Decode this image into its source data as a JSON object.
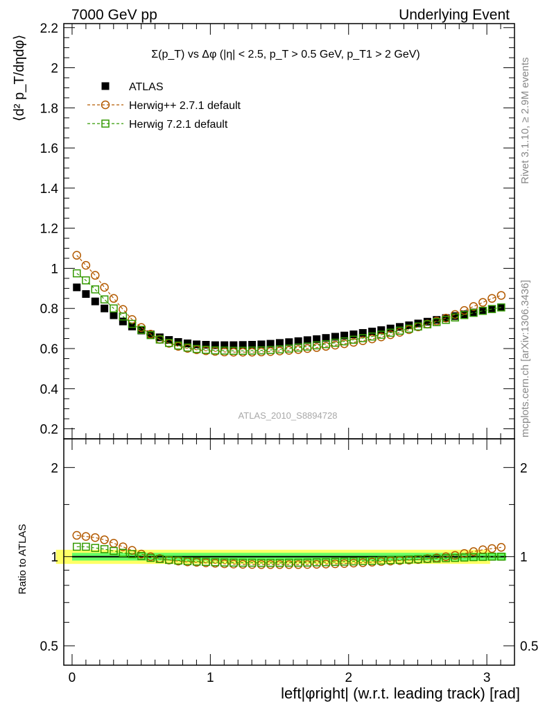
{
  "header": {
    "left": "7000 GeV pp",
    "right": "Underlying Event"
  },
  "side_labels": {
    "rivet": "Rivet 3.1.10, ≥ 2.9M events",
    "mcplots": "mcplots.cern.ch [arXiv:1306.3436]"
  },
  "plot_title": "Σ(p_T) vs Δφ (|η| < 2.5, p_T > 0.5 GeV, p_T1 > 2 GeV)",
  "analysis_label": "ATLAS_2010_S8894728",
  "colors": {
    "data": "#000000",
    "herwigpp": "#b35a00",
    "herwig7": "#339900",
    "band_inner": "#66ff66",
    "band_outer": "#ffff66"
  },
  "chart_data": [
    {
      "type": "scatter",
      "panel": "main",
      "ylabel": "⟨d² p_T/dηdφ⟩",
      "ylim": [
        0.15,
        2.22
      ],
      "xlim": [
        -0.06,
        3.2
      ],
      "y_ticks": [
        "0.2",
        "0.4",
        "0.6",
        "0.8",
        "1",
        "1.2",
        "1.4",
        "1.6",
        "1.8",
        "2",
        "2.2"
      ],
      "legend_position": "top-left",
      "x": [
        0.034,
        0.1,
        0.167,
        0.234,
        0.301,
        0.368,
        0.434,
        0.501,
        0.568,
        0.634,
        0.701,
        0.768,
        0.835,
        0.901,
        0.968,
        1.035,
        1.102,
        1.168,
        1.235,
        1.302,
        1.369,
        1.435,
        1.502,
        1.569,
        1.636,
        1.702,
        1.769,
        1.836,
        1.903,
        1.969,
        2.036,
        2.103,
        2.17,
        2.236,
        2.303,
        2.37,
        2.437,
        2.503,
        2.57,
        2.637,
        2.704,
        2.77,
        2.837,
        2.904,
        2.971,
        3.037,
        3.104
      ],
      "series": [
        {
          "name": "ATLAS",
          "marker": "square-filled",
          "values": [
            0.905,
            0.872,
            0.835,
            0.8,
            0.766,
            0.735,
            0.71,
            0.69,
            0.671,
            0.656,
            0.643,
            0.633,
            0.626,
            0.621,
            0.619,
            0.617,
            0.617,
            0.617,
            0.618,
            0.619,
            0.621,
            0.624,
            0.628,
            0.632,
            0.637,
            0.642,
            0.647,
            0.653,
            0.659,
            0.665,
            0.671,
            0.678,
            0.685,
            0.692,
            0.7,
            0.708,
            0.716,
            0.725,
            0.734,
            0.743,
            0.752,
            0.762,
            0.771,
            0.78,
            0.789,
            0.797,
            0.805
          ]
        },
        {
          "name": "Herwig++ 2.7.1 default",
          "marker": "circle-open",
          "values": [
            1.065,
            1.015,
            0.965,
            0.905,
            0.85,
            0.795,
            0.745,
            0.705,
            0.672,
            0.646,
            0.626,
            0.611,
            0.601,
            0.594,
            0.589,
            0.586,
            0.583,
            0.582,
            0.582,
            0.582,
            0.583,
            0.585,
            0.588,
            0.591,
            0.595,
            0.6,
            0.605,
            0.611,
            0.617,
            0.624,
            0.631,
            0.639,
            0.648,
            0.658,
            0.669,
            0.681,
            0.694,
            0.708,
            0.722,
            0.737,
            0.752,
            0.77,
            0.79,
            0.81,
            0.83,
            0.85,
            0.865
          ]
        },
        {
          "name": "Herwig 7.2.1 default",
          "marker": "square-open",
          "values": [
            0.975,
            0.94,
            0.895,
            0.845,
            0.8,
            0.76,
            0.723,
            0.693,
            0.667,
            0.645,
            0.628,
            0.615,
            0.605,
            0.598,
            0.594,
            0.591,
            0.59,
            0.589,
            0.589,
            0.59,
            0.591,
            0.593,
            0.596,
            0.6,
            0.605,
            0.61,
            0.616,
            0.622,
            0.629,
            0.636,
            0.644,
            0.652,
            0.66,
            0.669,
            0.679,
            0.689,
            0.699,
            0.71,
            0.721,
            0.732,
            0.743,
            0.755,
            0.767,
            0.778,
            0.788,
            0.797,
            0.805
          ]
        }
      ]
    },
    {
      "type": "scatter",
      "panel": "ratio",
      "ylabel": "Ratio to ATLAS",
      "xlabel": "left|φright| (w.r.t. leading track) [rad]",
      "yscale": "log",
      "ylim": [
        0.43,
        2.5
      ],
      "xlim": [
        -0.06,
        3.2
      ],
      "x_ticks": [
        "0",
        "1",
        "2",
        "3"
      ],
      "y_ticks": [
        "0.5",
        "1",
        "2"
      ],
      "band": {
        "inner": [
          0.97,
          1.03
        ],
        "outer": [
          0.945,
          1.055
        ]
      },
      "reference": 1.0,
      "x": [
        0.034,
        0.1,
        0.167,
        0.234,
        0.301,
        0.368,
        0.434,
        0.501,
        0.568,
        0.634,
        0.701,
        0.768,
        0.835,
        0.901,
        0.968,
        1.035,
        1.102,
        1.168,
        1.235,
        1.302,
        1.369,
        1.435,
        1.502,
        1.569,
        1.636,
        1.702,
        1.769,
        1.836,
        1.903,
        1.969,
        2.036,
        2.103,
        2.17,
        2.236,
        2.303,
        2.37,
        2.437,
        2.503,
        2.57,
        2.637,
        2.704,
        2.77,
        2.837,
        2.904,
        2.971,
        3.037,
        3.104
      ],
      "series": [
        {
          "name": "Herwig++ 2.7.1 default",
          "marker": "circle-open",
          "values": [
            1.18,
            1.17,
            1.16,
            1.14,
            1.11,
            1.08,
            1.05,
            1.02,
            1.0,
            0.985,
            0.974,
            0.966,
            0.96,
            0.957,
            0.953,
            0.95,
            0.946,
            0.944,
            0.942,
            0.941,
            0.94,
            0.94,
            0.94,
            0.94,
            0.94,
            0.941,
            0.942,
            0.944,
            0.946,
            0.948,
            0.951,
            0.954,
            0.958,
            0.962,
            0.966,
            0.97,
            0.974,
            0.978,
            0.984,
            0.99,
            1.0,
            1.01,
            1.025,
            1.04,
            1.055,
            1.065,
            1.075
          ]
        },
        {
          "name": "Herwig 7.2.1 default",
          "marker": "square-open",
          "values": [
            1.08,
            1.08,
            1.07,
            1.06,
            1.045,
            1.03,
            1.02,
            1.005,
            0.99,
            0.982,
            0.975,
            0.97,
            0.966,
            0.963,
            0.96,
            0.958,
            0.956,
            0.955,
            0.954,
            0.954,
            0.953,
            0.953,
            0.953,
            0.954,
            0.954,
            0.955,
            0.957,
            0.958,
            0.96,
            0.962,
            0.964,
            0.966,
            0.968,
            0.97,
            0.973,
            0.975,
            0.978,
            0.98,
            0.983,
            0.985,
            0.988,
            0.99,
            0.993,
            0.996,
            0.998,
            1.0,
            1.0
          ]
        }
      ]
    }
  ]
}
